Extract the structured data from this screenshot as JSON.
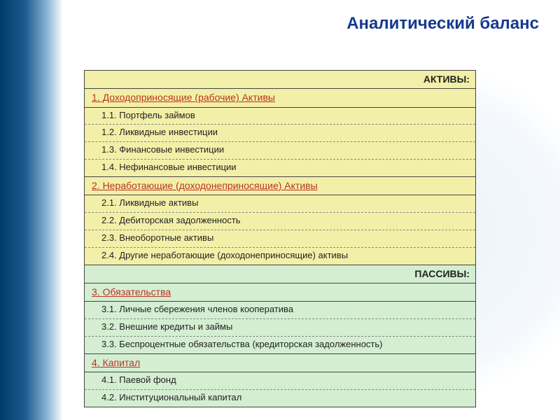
{
  "title": "Аналитический баланс",
  "colors": {
    "title_color": "#163a8c",
    "section_color": "#bb3322",
    "yellow_bg": "#f2f0a8",
    "green_bg": "#d4eed2",
    "border_color": "#444444"
  },
  "table": {
    "header_assets": "АКТИВЫ:",
    "section1": "1. Доходоприносящие (рабочие) Активы",
    "s1_1": "1.1. Портфель займов",
    "s1_2": "1.2. Ликвидные инвестиции",
    "s1_3": "1.3. Финансовые инвестиции",
    "s1_4": "1.4. Нефинансовые инвестиции",
    "section2": "2. Неработающие (доходонеприносящие) Активы",
    "s2_1": "2.1. Ликвидные активы",
    "s2_2": "2.2. Дебиторская задолженность",
    "s2_3": "2.3. Внеоборотные активы",
    "s2_4": "2.4. Другие неработающие (доходонеприносящие) активы",
    "header_liab": "ПАССИВЫ:",
    "section3": "3. Обязательства",
    "s3_1": "3.1. Личные сбережения членов кооператива",
    "s3_2": "3.2. Внешние кредиты и займы",
    "s3_3": "3.3. Беспроцентные обязательства (кредиторская задолженность)",
    "section4": "4. Капитал",
    "s4_1": "4.1. Паевой фонд",
    "s4_2": "4.2. Институциональный капитал"
  }
}
